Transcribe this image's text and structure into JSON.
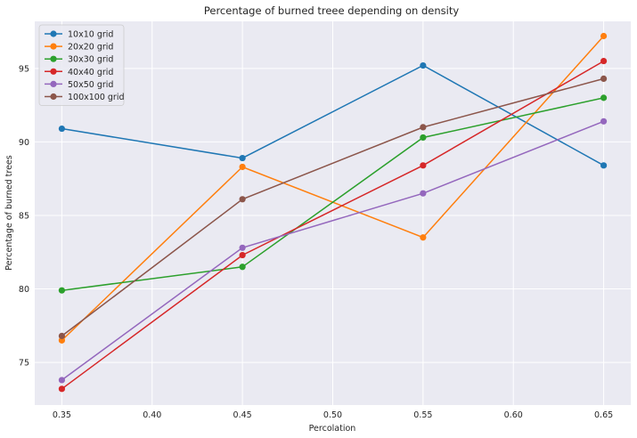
{
  "chart_data": {
    "type": "line",
    "title": "Percentage of burned treee depending on density",
    "xlabel": "Percolation",
    "ylabel": "Percentage of burned trees",
    "xlim": [
      0.335,
      0.665
    ],
    "ylim": [
      72.1,
      98.2
    ],
    "xticks": [
      0.35,
      0.4,
      0.45,
      0.5,
      0.55,
      0.6,
      0.65
    ],
    "xtick_labels": [
      "0.35",
      "0.40",
      "0.45",
      "0.50",
      "0.55",
      "0.60",
      "0.65"
    ],
    "yticks": [
      75,
      80,
      85,
      90,
      95
    ],
    "ytick_labels": [
      "75",
      "80",
      "85",
      "90",
      "95"
    ],
    "grid": true,
    "legend_position": "top-left",
    "x": [
      0.35,
      0.45,
      0.55,
      0.65
    ],
    "series": [
      {
        "name": "10x10 grid",
        "color": "#1f77b4",
        "values": [
          90.9,
          88.9,
          95.2,
          88.4
        ]
      },
      {
        "name": "20x20 grid",
        "color": "#ff7f0e",
        "values": [
          76.5,
          88.3,
          83.5,
          97.2
        ]
      },
      {
        "name": "30x30 grid",
        "color": "#2ca02c",
        "values": [
          79.9,
          81.5,
          90.3,
          93.0
        ]
      },
      {
        "name": "40x40 grid",
        "color": "#d62728",
        "values": [
          73.2,
          82.3,
          88.4,
          95.5
        ]
      },
      {
        "name": "50x50 grid",
        "color": "#9467bd",
        "values": [
          73.8,
          82.8,
          86.5,
          91.4
        ]
      },
      {
        "name": "100x100 grid",
        "color": "#8c564b",
        "values": [
          76.8,
          86.1,
          91.0,
          94.3
        ]
      }
    ]
  }
}
